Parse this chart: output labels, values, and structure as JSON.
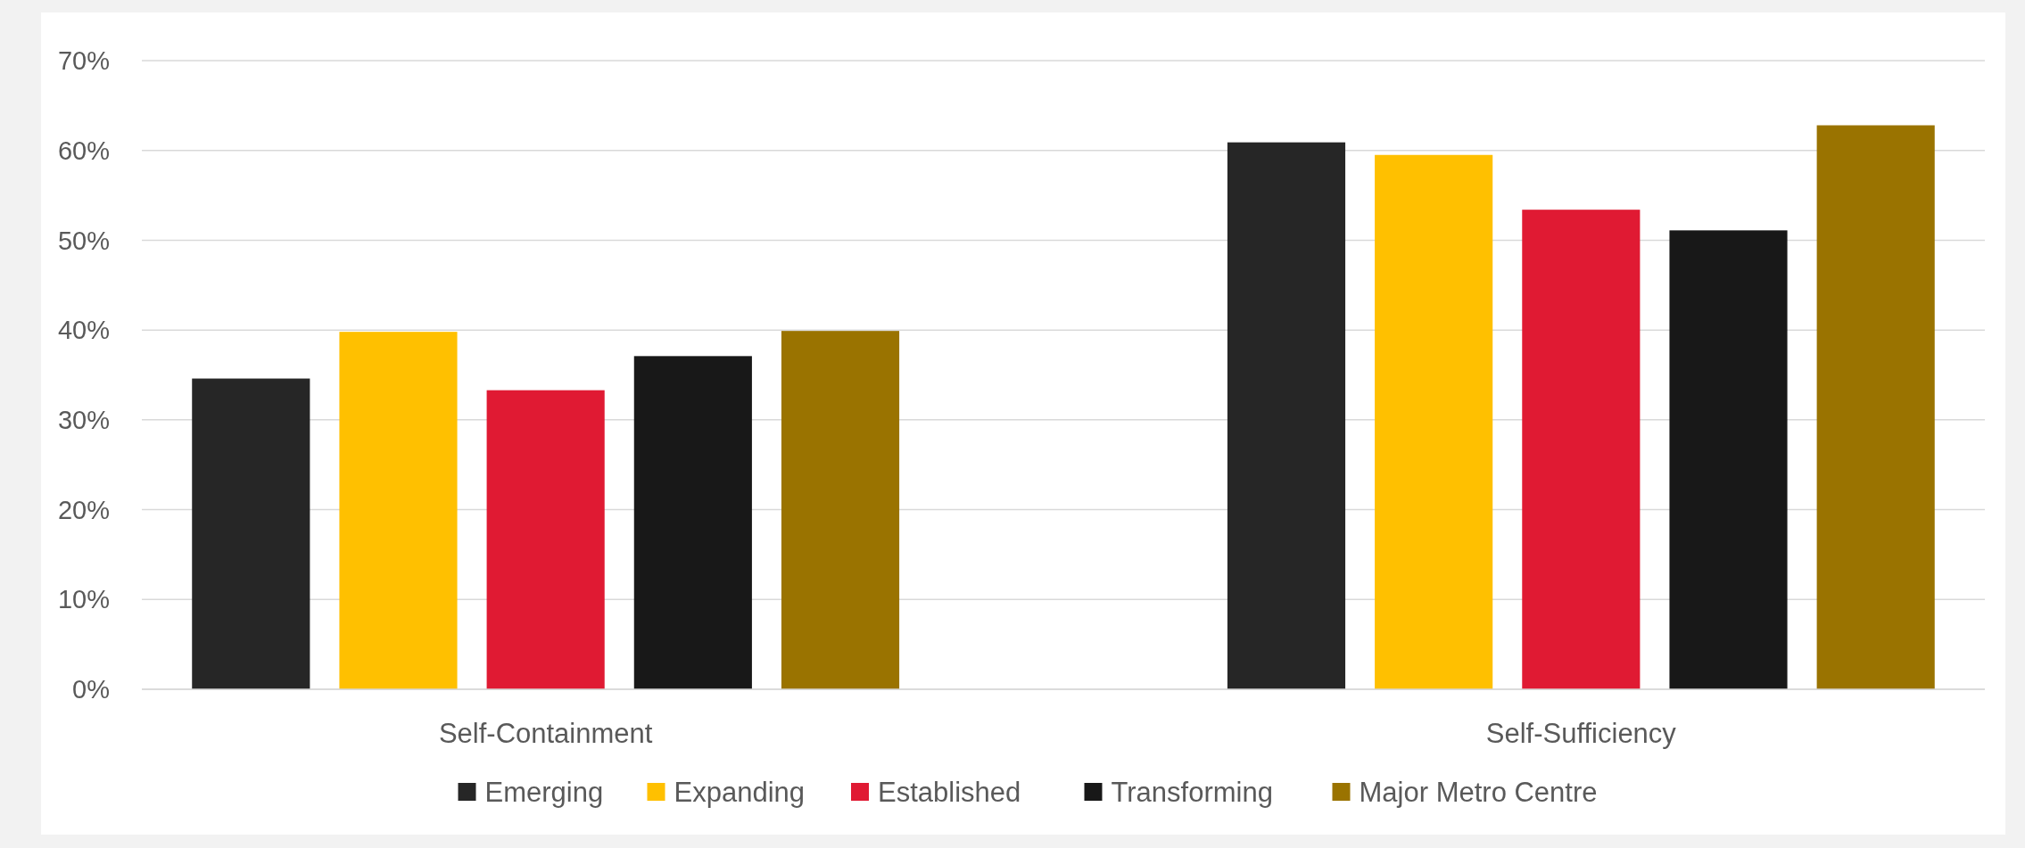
{
  "chart_data": {
    "type": "bar",
    "categories": [
      "Self-Containment",
      "Self-Sufficiency"
    ],
    "series": [
      {
        "name": "Emerging",
        "color": "#262626",
        "values": [
          34.6,
          60.9
        ]
      },
      {
        "name": "Expanding",
        "color": "#ffc000",
        "values": [
          39.8,
          59.5
        ]
      },
      {
        "name": "Established",
        "color": "#e01a33",
        "values": [
          33.3,
          53.4
        ]
      },
      {
        "name": "Transforming",
        "color": "#181818",
        "values": [
          37.1,
          51.1
        ]
      },
      {
        "name": "Major Metro Centre",
        "color": "#9a7300",
        "values": [
          39.9,
          62.8
        ]
      }
    ],
    "ylim": [
      0,
      70
    ],
    "yticks": [
      {
        "value": 0,
        "label": "0%"
      },
      {
        "value": 10,
        "label": "10%"
      },
      {
        "value": 20,
        "label": "20%"
      },
      {
        "value": 30,
        "label": "30%"
      },
      {
        "value": 40,
        "label": "40%"
      },
      {
        "value": 50,
        "label": "50%"
      },
      {
        "value": 60,
        "label": "60%"
      },
      {
        "value": 70,
        "label": "70%"
      }
    ],
    "grid": "y",
    "legend": "bottom"
  }
}
